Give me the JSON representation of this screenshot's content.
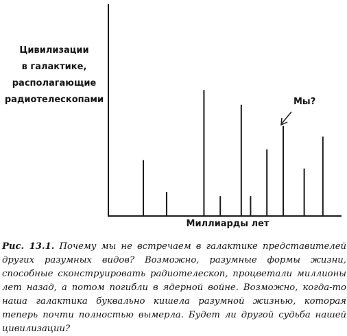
{
  "chart_data": {
    "type": "bar",
    "ylabel_lines": [
      "Цивилизации",
      "в галактике,",
      "располагающие",
      "радиотелескопами"
    ],
    "xlabel": "Миллиарды лет",
    "grid": false,
    "bars": [
      {
        "x": 0.15,
        "value": 0.26
      },
      {
        "x": 0.25,
        "value": 0.11
      },
      {
        "x": 0.41,
        "value": 0.59
      },
      {
        "x": 0.48,
        "value": 0.09
      },
      {
        "x": 0.57,
        "value": 0.52
      },
      {
        "x": 0.61,
        "value": 0.09
      },
      {
        "x": 0.68,
        "value": 0.31
      },
      {
        "x": 0.75,
        "value": 0.42
      },
      {
        "x": 0.84,
        "value": 0.22
      },
      {
        "x": 0.92,
        "value": 0.37
      }
    ],
    "annotation": {
      "text": "Мы?",
      "bar_index": 7
    }
  },
  "caption": {
    "label": "Рис. 13.1.",
    "text": "Почему мы не встречаем в галактике представителей других разумных видов? Возможно, разумные формы жизни, способные сконструировать радиотелескоп, процветали миллионы лет назад, а потом погибли в ядерной войне. Возможно, когда-то наша галактика буквально кишела разумной жизнью, которая теперь почти полностью вымерла. Будет ли другой судьба нашей цивилизации?"
  }
}
